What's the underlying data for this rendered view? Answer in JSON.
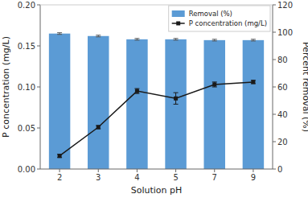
{
  "chart_data": {
    "type": "bar",
    "xlabel": "Solution pH",
    "ylabel": "P concentration (mg/L)",
    "y2label": "Percent removal (%)",
    "categories": [
      "2",
      "3",
      "4",
      "5",
      "7",
      "9"
    ],
    "series": [
      {
        "name": "Removal (%)",
        "type": "bar",
        "color": "#5b9bd5",
        "values": [
          0.165,
          0.162,
          0.158,
          0.158,
          0.157,
          0.157
        ],
        "error": [
          0.001,
          0.001,
          0.001,
          0.001,
          0.001,
          0.001
        ]
      },
      {
        "name": "P concentration (mg/L)",
        "type": "line",
        "color": "#1a1a1a",
        "marker": "square",
        "values": [
          0.016,
          0.051,
          0.095,
          0.086,
          0.103,
          0.106
        ],
        "error": [
          0.002,
          0.002,
          0.003,
          0.007,
          0.003,
          0.002
        ]
      }
    ],
    "ylim": [
      0,
      0.2
    ],
    "yticks": [
      {
        "value": 0,
        "label": "0.00"
      },
      0.05,
      {
        "value": 0.1,
        "label": "0.10"
      },
      0.15,
      {
        "value": 0.2,
        "label": "0.20"
      }
    ],
    "y2lim": [
      0,
      120
    ],
    "y2ticks": [
      0,
      20,
      40,
      60,
      80,
      100,
      120
    ],
    "legend": "upper right",
    "grid": false
  }
}
